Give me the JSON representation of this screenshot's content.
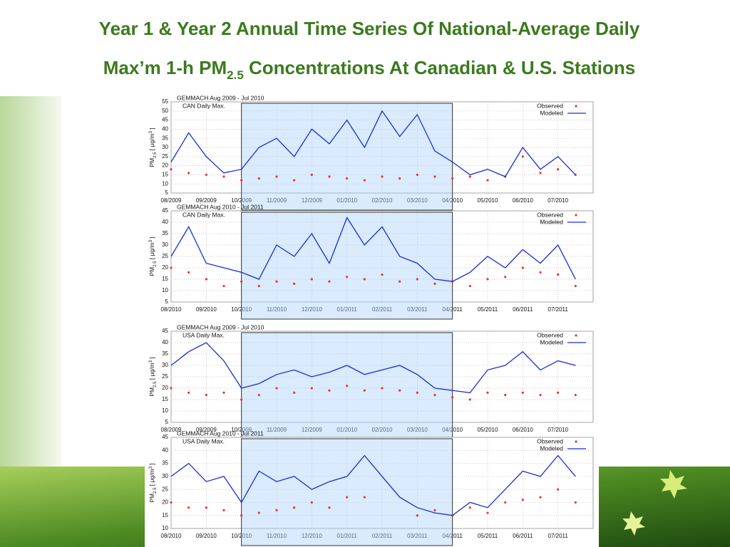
{
  "title": {
    "line1": "Year 1 & Year 2 Annual Time Series Of National-Average Daily",
    "line2": [
      "Max’m 1-h PM",
      "2.5",
      " Concentrations At Canadian & U.S. Stations"
    ]
  },
  "ylabel": [
    "PM",
    "2.5",
    " [ μg/m",
    "3",
    " ]"
  ],
  "chart_data": [
    {
      "type": "line",
      "title": "GEMMACH Aug 2009 - Jul 2010",
      "subtitle": "CAN Daily Max.",
      "x": [
        0,
        0.5,
        1,
        1.5,
        2,
        2.5,
        3,
        3.5,
        4,
        4.5,
        5,
        5.5,
        6,
        6.5,
        7,
        7.5,
        8,
        8.5,
        9,
        9.5,
        10,
        10.5,
        11,
        11.5
      ],
      "xlim": [
        0,
        12
      ],
      "xticks": [
        {
          "value": 0,
          "label": "08/2009"
        },
        {
          "value": 1,
          "label": "09/2009"
        },
        {
          "value": 2,
          "label": "10/2009"
        },
        {
          "value": 3,
          "label": "11/2009"
        },
        {
          "value": 4,
          "label": "12/2009"
        },
        {
          "value": 5,
          "label": "01/2010"
        },
        {
          "value": 6,
          "label": "02/2010"
        },
        {
          "value": 7,
          "label": "03/2010"
        },
        {
          "value": 8,
          "label": "04/2010"
        },
        {
          "value": 9,
          "label": "05/2010"
        },
        {
          "value": 10,
          "label": "06/2010"
        },
        {
          "value": 11,
          "label": "07/2010"
        }
      ],
      "ylim": [
        5,
        55
      ],
      "yticks": [
        5,
        10,
        15,
        20,
        25,
        30,
        35,
        40,
        45,
        50,
        55
      ],
      "grid": true,
      "highlight": [
        2,
        8
      ],
      "legend": "upper right",
      "series": [
        {
          "name": "Observed",
          "color": "#e8343a",
          "style": "points",
          "values": [
            18,
            16,
            15,
            14,
            12,
            13,
            14,
            12,
            15,
            14,
            13,
            12,
            14,
            13,
            15,
            14,
            13,
            14,
            12,
            14,
            25,
            16,
            18,
            15
          ]
        },
        {
          "name": "Modeled",
          "color": "#1c2bd6",
          "style": "line",
          "values": [
            22,
            38,
            25,
            16,
            18,
            30,
            35,
            25,
            40,
            32,
            45,
            30,
            50,
            36,
            48,
            28,
            22,
            15,
            18,
            14,
            30,
            18,
            25,
            15
          ]
        }
      ]
    },
    {
      "type": "line",
      "title": "GEMMACH Aug 2010 - Jul 2011",
      "subtitle": "CAN Daily Max.",
      "x": [
        0,
        0.5,
        1,
        1.5,
        2,
        2.5,
        3,
        3.5,
        4,
        4.5,
        5,
        5.5,
        6,
        6.5,
        7,
        7.5,
        8,
        8.5,
        9,
        9.5,
        10,
        10.5,
        11,
        11.5
      ],
      "xlim": [
        0,
        12
      ],
      "xticks": [
        {
          "value": 0,
          "label": "08/2010"
        },
        {
          "value": 1,
          "label": "09/2010"
        },
        {
          "value": 2,
          "label": "10/2010"
        },
        {
          "value": 3,
          "label": "11/2010"
        },
        {
          "value": 4,
          "label": "12/2010"
        },
        {
          "value": 5,
          "label": "01/2011"
        },
        {
          "value": 6,
          "label": "02/2011"
        },
        {
          "value": 7,
          "label": "03/2011"
        },
        {
          "value": 8,
          "label": "04/2011"
        },
        {
          "value": 9,
          "label": "05/2011"
        },
        {
          "value": 10,
          "label": "06/2011"
        },
        {
          "value": 11,
          "label": "07/2011"
        }
      ],
      "ylim": [
        5,
        45
      ],
      "yticks": [
        5,
        10,
        15,
        20,
        25,
        30,
        35,
        40,
        45
      ],
      "grid": true,
      "highlight": [
        2,
        8
      ],
      "legend": "upper right",
      "series": [
        {
          "name": "Observed",
          "color": "#e8343a",
          "style": "points",
          "values": [
            20,
            18,
            15,
            12,
            14,
            12,
            14,
            13,
            15,
            14,
            16,
            15,
            17,
            14,
            15,
            13,
            14,
            12,
            15,
            16,
            20,
            18,
            17,
            12
          ]
        },
        {
          "name": "Modeled",
          "color": "#1c2bd6",
          "style": "line",
          "values": [
            25,
            38,
            22,
            20,
            18,
            15,
            30,
            25,
            35,
            22,
            42,
            30,
            38,
            25,
            22,
            15,
            14,
            18,
            25,
            20,
            28,
            22,
            30,
            15
          ]
        }
      ]
    },
    {
      "type": "line",
      "title": "GEMMACH Aug 2009 - Jul 2010",
      "subtitle": "USA Daily Max.",
      "x": [
        0,
        0.5,
        1,
        1.5,
        2,
        2.5,
        3,
        3.5,
        4,
        4.5,
        5,
        5.5,
        6,
        6.5,
        7,
        7.5,
        8,
        8.5,
        9,
        9.5,
        10,
        10.5,
        11,
        11.5
      ],
      "xlim": [
        0,
        12
      ],
      "xticks": [
        {
          "value": 0,
          "label": "08/2009"
        },
        {
          "value": 1,
          "label": "09/2009"
        },
        {
          "value": 2,
          "label": "10/2009"
        },
        {
          "value": 3,
          "label": "11/2009"
        },
        {
          "value": 4,
          "label": "12/2009"
        },
        {
          "value": 5,
          "label": "01/2010"
        },
        {
          "value": 6,
          "label": "02/2010"
        },
        {
          "value": 7,
          "label": "03/2010"
        },
        {
          "value": 8,
          "label": "04/2010"
        },
        {
          "value": 9,
          "label": "05/2010"
        },
        {
          "value": 10,
          "label": "06/2010"
        },
        {
          "value": 11,
          "label": "07/2010"
        }
      ],
      "ylim": [
        5,
        45
      ],
      "yticks": [
        5,
        10,
        15,
        20,
        25,
        30,
        35,
        40,
        45
      ],
      "grid": true,
      "highlight": [
        2,
        8
      ],
      "legend": "upper right",
      "series": [
        {
          "name": "Observed",
          "color": "#e8343a",
          "style": "points",
          "values": [
            20,
            18,
            17,
            18,
            15,
            17,
            20,
            18,
            20,
            19,
            21,
            19,
            20,
            19,
            18,
            17,
            16,
            15,
            18,
            17,
            18,
            17,
            18,
            17
          ]
        },
        {
          "name": "Modeled",
          "color": "#1c2bd6",
          "style": "line",
          "values": [
            30,
            36,
            40,
            32,
            20,
            22,
            26,
            28,
            25,
            27,
            30,
            26,
            28,
            30,
            26,
            20,
            19,
            18,
            28,
            30,
            36,
            28,
            32,
            30
          ]
        }
      ]
    },
    {
      "type": "line",
      "title": "GEMMACH Aug 2010 - Jul 2011",
      "subtitle": "USA Daily Max.",
      "x": [
        0,
        0.5,
        1,
        1.5,
        2,
        2.5,
        3,
        3.5,
        4,
        4.5,
        5,
        5.5,
        6,
        6.5,
        7,
        7.5,
        8,
        8.5,
        9,
        9.5,
        10,
        10.5,
        11,
        11.5
      ],
      "xlim": [
        0,
        12
      ],
      "xticks": [
        {
          "value": 0,
          "label": "08/2010"
        },
        {
          "value": 1,
          "label": "09/2010"
        },
        {
          "value": 2,
          "label": "10/2010"
        },
        {
          "value": 3,
          "label": "11/2010"
        },
        {
          "value": 4,
          "label": "12/2010"
        },
        {
          "value": 5,
          "label": "01/2011"
        },
        {
          "value": 6,
          "label": "02/2011"
        },
        {
          "value": 7,
          "label": "03/2011"
        },
        {
          "value": 8,
          "label": "04/2011"
        },
        {
          "value": 9,
          "label": "05/2011"
        },
        {
          "value": 10,
          "label": "06/2011"
        },
        {
          "value": 11,
          "label": "07/2011"
        }
      ],
      "ylim": [
        10,
        45
      ],
      "yticks": [
        10,
        15,
        20,
        25,
        30,
        35,
        40,
        45
      ],
      "grid": true,
      "highlight": [
        2,
        8
      ],
      "legend": "upper right",
      "series": [
        {
          "name": "Observed",
          "color": "#e8343a",
          "style": "points",
          "values": [
            20,
            18,
            18,
            17,
            15,
            16,
            17,
            18,
            20,
            18,
            22,
            22,
            null,
            null,
            15,
            17,
            15,
            18,
            16,
            20,
            21,
            22,
            25,
            20
          ]
        },
        {
          "name": "Modeled",
          "color": "#1c2bd6",
          "style": "line",
          "values": [
            30,
            35,
            28,
            30,
            20,
            32,
            28,
            30,
            25,
            28,
            30,
            38,
            30,
            22,
            18,
            16,
            15,
            20,
            18,
            25,
            32,
            30,
            38,
            30
          ]
        }
      ]
    }
  ]
}
